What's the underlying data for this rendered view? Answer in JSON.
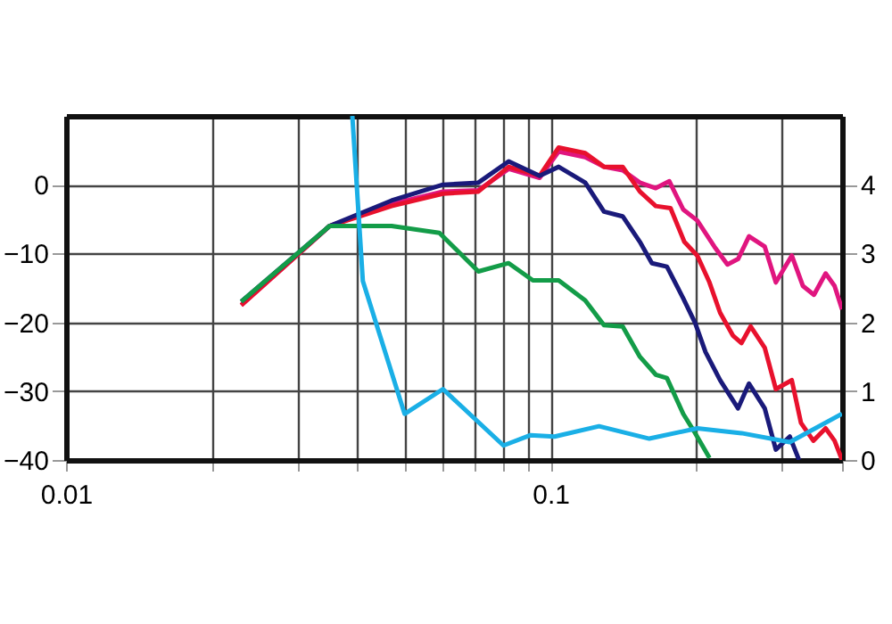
{
  "chart_data": {
    "type": "line",
    "xlim": [
      0.01,
      0.4
    ],
    "xticks": [
      0.01,
      {
        "value": 0.02,
        "label": null
      },
      {
        "value": 0.03,
        "label": null
      },
      {
        "value": 0.04,
        "label": null
      },
      {
        "value": 0.05,
        "label": null
      },
      {
        "value": 0.06,
        "label": null
      },
      {
        "value": 0.07,
        "label": null
      },
      {
        "value": 0.08,
        "label": null
      },
      {
        "value": 0.09,
        "label": null
      },
      0.1,
      {
        "value": 0.2,
        "label": null
      },
      {
        "value": 0.3,
        "label": null
      },
      {
        "value": 0.4,
        "label": null
      }
    ],
    "ylim": [
      -40,
      10
    ],
    "yticks": [
      -40,
      -30,
      -20,
      -10,
      0
    ],
    "y2lim": [
      0,
      5
    ],
    "y2ticks": [
      0,
      1,
      2,
      3,
      4
    ],
    "log": "x",
    "grid": true,
    "legend": false,
    "line_style": "solid",
    "marker": "none",
    "series": [
      {
        "color": "#e0157f",
        "x": [
          0.023,
          0.035,
          0.047,
          0.06,
          0.071,
          0.082,
          0.095,
          0.104,
          0.118,
          0.129,
          0.141,
          0.153,
          0.165,
          0.176,
          0.188,
          0.201,
          0.218,
          0.232,
          0.244,
          0.257,
          0.277,
          0.292,
          0.315,
          0.332,
          0.35,
          0.37,
          0.386,
          0.4
        ],
        "values": [
          -17.5,
          -6,
          -2.8,
          -1.0,
          -0.8,
          2.3,
          1.0,
          4.8,
          4.0,
          2.6,
          2.1,
          0.3,
          -0.5,
          0.5,
          -3.6,
          -5.2,
          -9,
          -11.6,
          -10.8,
          -7.5,
          -9,
          -14.2,
          -10.3,
          -14.7,
          -16,
          -12.9,
          -14.7,
          -18.1
        ]
      },
      {
        "color": "#e8112d",
        "x": [
          0.023,
          0.035,
          0.047,
          0.06,
          0.071,
          0.082,
          0.095,
          0.104,
          0.118,
          0.129,
          0.141,
          0.153,
          0.165,
          0.177,
          0.189,
          0.201,
          0.213,
          0.224,
          0.238,
          0.248,
          0.259,
          0.277,
          0.292,
          0.315,
          0.329,
          0.349,
          0.37,
          0.386,
          0.4
        ],
        "values": [
          -17.5,
          -6,
          -3.1,
          -1.3,
          -1,
          2.6,
          1.3,
          5.4,
          4.6,
          2.6,
          2.6,
          -1,
          -3.1,
          -3.4,
          -8.3,
          -10.3,
          -14.2,
          -18.6,
          -21.9,
          -23,
          -20.6,
          -23.7,
          -29.7,
          -28.4,
          -34.6,
          -37.2,
          -35.4,
          -37.2,
          -40
        ]
      },
      {
        "color": "#1a1a7a",
        "x": [
          0.023,
          0.035,
          0.047,
          0.06,
          0.071,
          0.082,
          0.095,
          0.104,
          0.118,
          0.129,
          0.141,
          0.153,
          0.162,
          0.174,
          0.188,
          0.199,
          0.209,
          0.224,
          0.244,
          0.257,
          0.277,
          0.292,
          0.312,
          0.326
        ],
        "values": [
          -17,
          -6,
          -2.3,
          0,
          0.3,
          3.4,
          1.3,
          2.6,
          0.3,
          -3.9,
          -4.6,
          -8.3,
          -11.4,
          -11.9,
          -16.5,
          -20.1,
          -24.3,
          -28.4,
          -32.5,
          -28.9,
          -32.5,
          -38.5,
          -36.6,
          -40
        ]
      },
      {
        "color": "#139c48",
        "x": [
          0.023,
          0.035,
          0.04,
          0.047,
          0.059,
          0.071,
          0.082,
          0.092,
          0.104,
          0.118,
          0.129,
          0.141,
          0.153,
          0.165,
          0.174,
          0.188,
          0.199,
          0.213
        ],
        "values": [
          -17,
          -6,
          -6,
          -6,
          -7,
          -12.6,
          -11.4,
          -13.9,
          -13.9,
          -16.8,
          -20.4,
          -20.6,
          -25,
          -27.6,
          -28.1,
          -33.3,
          -36.1,
          -39.7
        ]
      },
      {
        "color": "#1aafe6",
        "axis": "y2",
        "x": [
          0.039,
          0.041,
          0.05,
          0.06,
          0.08,
          0.091,
          0.102,
          0.126,
          0.16,
          0.201,
          0.248,
          0.312,
          0.4
        ],
        "values": [
          5,
          2.6,
          0.67,
          1.03,
          0.21,
          0.36,
          0.34,
          0.49,
          0.31,
          0.46,
          0.39,
          0.26,
          0.67
        ]
      }
    ]
  }
}
